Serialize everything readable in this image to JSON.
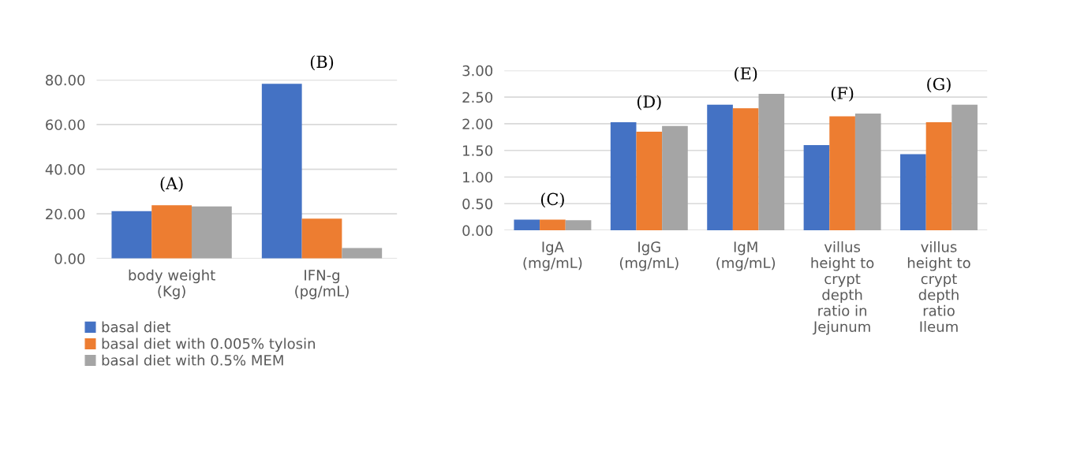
{
  "chart_data": [
    {
      "type": "bar",
      "categories": [
        "body weight\n(Kg)",
        "IFN-g\n(pg/mL)"
      ],
      "series": [
        {
          "name": "basal diet",
          "color": "#4472c4",
          "values": [
            21.2,
            78.3
          ]
        },
        {
          "name": "basal diet with 0.005% tylosin",
          "color": "#ed7d31",
          "values": [
            23.9,
            17.9
          ]
        },
        {
          "name": "basal diet with 0.5% MEM",
          "color": "#a5a5a5",
          "values": [
            23.3,
            4.7
          ]
        }
      ],
      "ylim": [
        0,
        80
      ],
      "yticks": [
        {
          "value": 0,
          "label": "0.00"
        },
        {
          "value": 20,
          "label": "20.00"
        },
        {
          "value": 40,
          "label": "40.00"
        },
        {
          "value": 60,
          "label": "60.00"
        },
        {
          "value": 80,
          "label": "80.00"
        }
      ],
      "grid": "y",
      "legend": "bottom",
      "annotations": [
        "(A)",
        "(B)"
      ]
    },
    {
      "type": "bar",
      "categories": [
        "IgA\n(mg/mL)",
        "IgG\n(mg/mL)",
        "IgM\n(mg/mL)",
        "villus\nheight to\ncrypt\ndepth\nratio in\nJejunum",
        "villus\nheight to\ncrypt\ndepth\nratio\nIleum"
      ],
      "series": [
        {
          "color": "#4472c4",
          "values": [
            0.2,
            2.03,
            2.36,
            1.6,
            1.43
          ]
        },
        {
          "color": "#ed7d31",
          "values": [
            0.2,
            1.85,
            2.29,
            2.14,
            2.03
          ]
        },
        {
          "color": "#a5a5a5",
          "values": [
            0.19,
            1.96,
            2.56,
            2.19,
            2.36
          ]
        }
      ],
      "ylim": [
        0,
        3
      ],
      "yticks": [
        {
          "value": 0,
          "label": "0.00"
        },
        {
          "value": 0.5,
          "label": "0.50"
        },
        {
          "value": 1,
          "label": "1.00"
        },
        {
          "value": 1.5,
          "label": "1.50"
        },
        {
          "value": 2,
          "label": "2.00"
        },
        {
          "value": 2.5,
          "label": "2.50"
        },
        {
          "value": 3,
          "label": "3.00"
        }
      ],
      "grid": "y",
      "annotations": [
        "(C)",
        "(D)",
        "(E)",
        "(F)",
        "(G)"
      ]
    }
  ]
}
